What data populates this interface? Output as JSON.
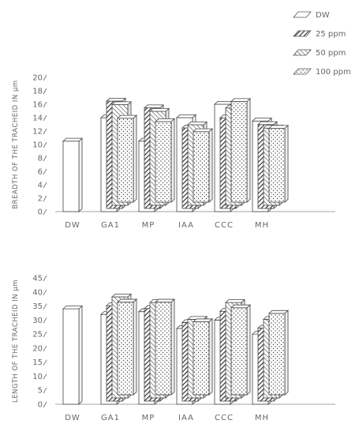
{
  "chart_data": [
    {
      "type": "bar",
      "ylabel": "BREADTH OF THE TRACHEID IN µm",
      "yticks": [
        "0",
        "2",
        "4",
        "6",
        "8",
        "10",
        "12",
        "14",
        "16",
        "18",
        "20"
      ],
      "ylim": [
        0,
        20
      ],
      "categories": [
        "DW",
        "GA1",
        "MP",
        "IAA",
        "CCC",
        "MH"
      ],
      "series": [
        {
          "name": "DW",
          "values": [
            10.5,
            14,
            10.5,
            14,
            16,
            13.5
          ]
        },
        {
          "name": "25 ppm",
          "values": [
            null,
            16,
            15,
            12,
            13.5,
            12.5
          ]
        },
        {
          "name": "50 ppm",
          "values": [
            null,
            15,
            14,
            12,
            14.5,
            11.5
          ]
        },
        {
          "name": "100 ppm",
          "values": [
            null,
            12.5,
            12,
            10.5,
            15,
            11
          ]
        }
      ]
    },
    {
      "type": "bar",
      "ylabel": "LENGTH OF THE TRACHEID IN µm",
      "yticks": [
        "0",
        "5",
        "10",
        "15",
        "20",
        "25",
        "30",
        "35",
        "40",
        "45"
      ],
      "ylim": [
        0,
        45
      ],
      "categories": [
        "DW",
        "GA1",
        "MP",
        "IAA",
        "CCC",
        "MH"
      ],
      "series": [
        {
          "name": "DW",
          "values": [
            34,
            32,
            33,
            27,
            30,
            25
          ]
        },
        {
          "name": "25 ppm",
          "values": [
            null,
            34,
            33,
            28,
            32,
            26
          ]
        },
        {
          "name": "50 ppm",
          "values": [
            null,
            36,
            34,
            28,
            34,
            28
          ]
        },
        {
          "name": "100 ppm",
          "values": [
            null,
            33,
            33,
            26,
            31,
            29
          ]
        }
      ]
    }
  ],
  "legend": {
    "position": "top-right",
    "items": [
      "DW",
      "25 ppm",
      "50 ppm",
      "100 ppm"
    ]
  }
}
